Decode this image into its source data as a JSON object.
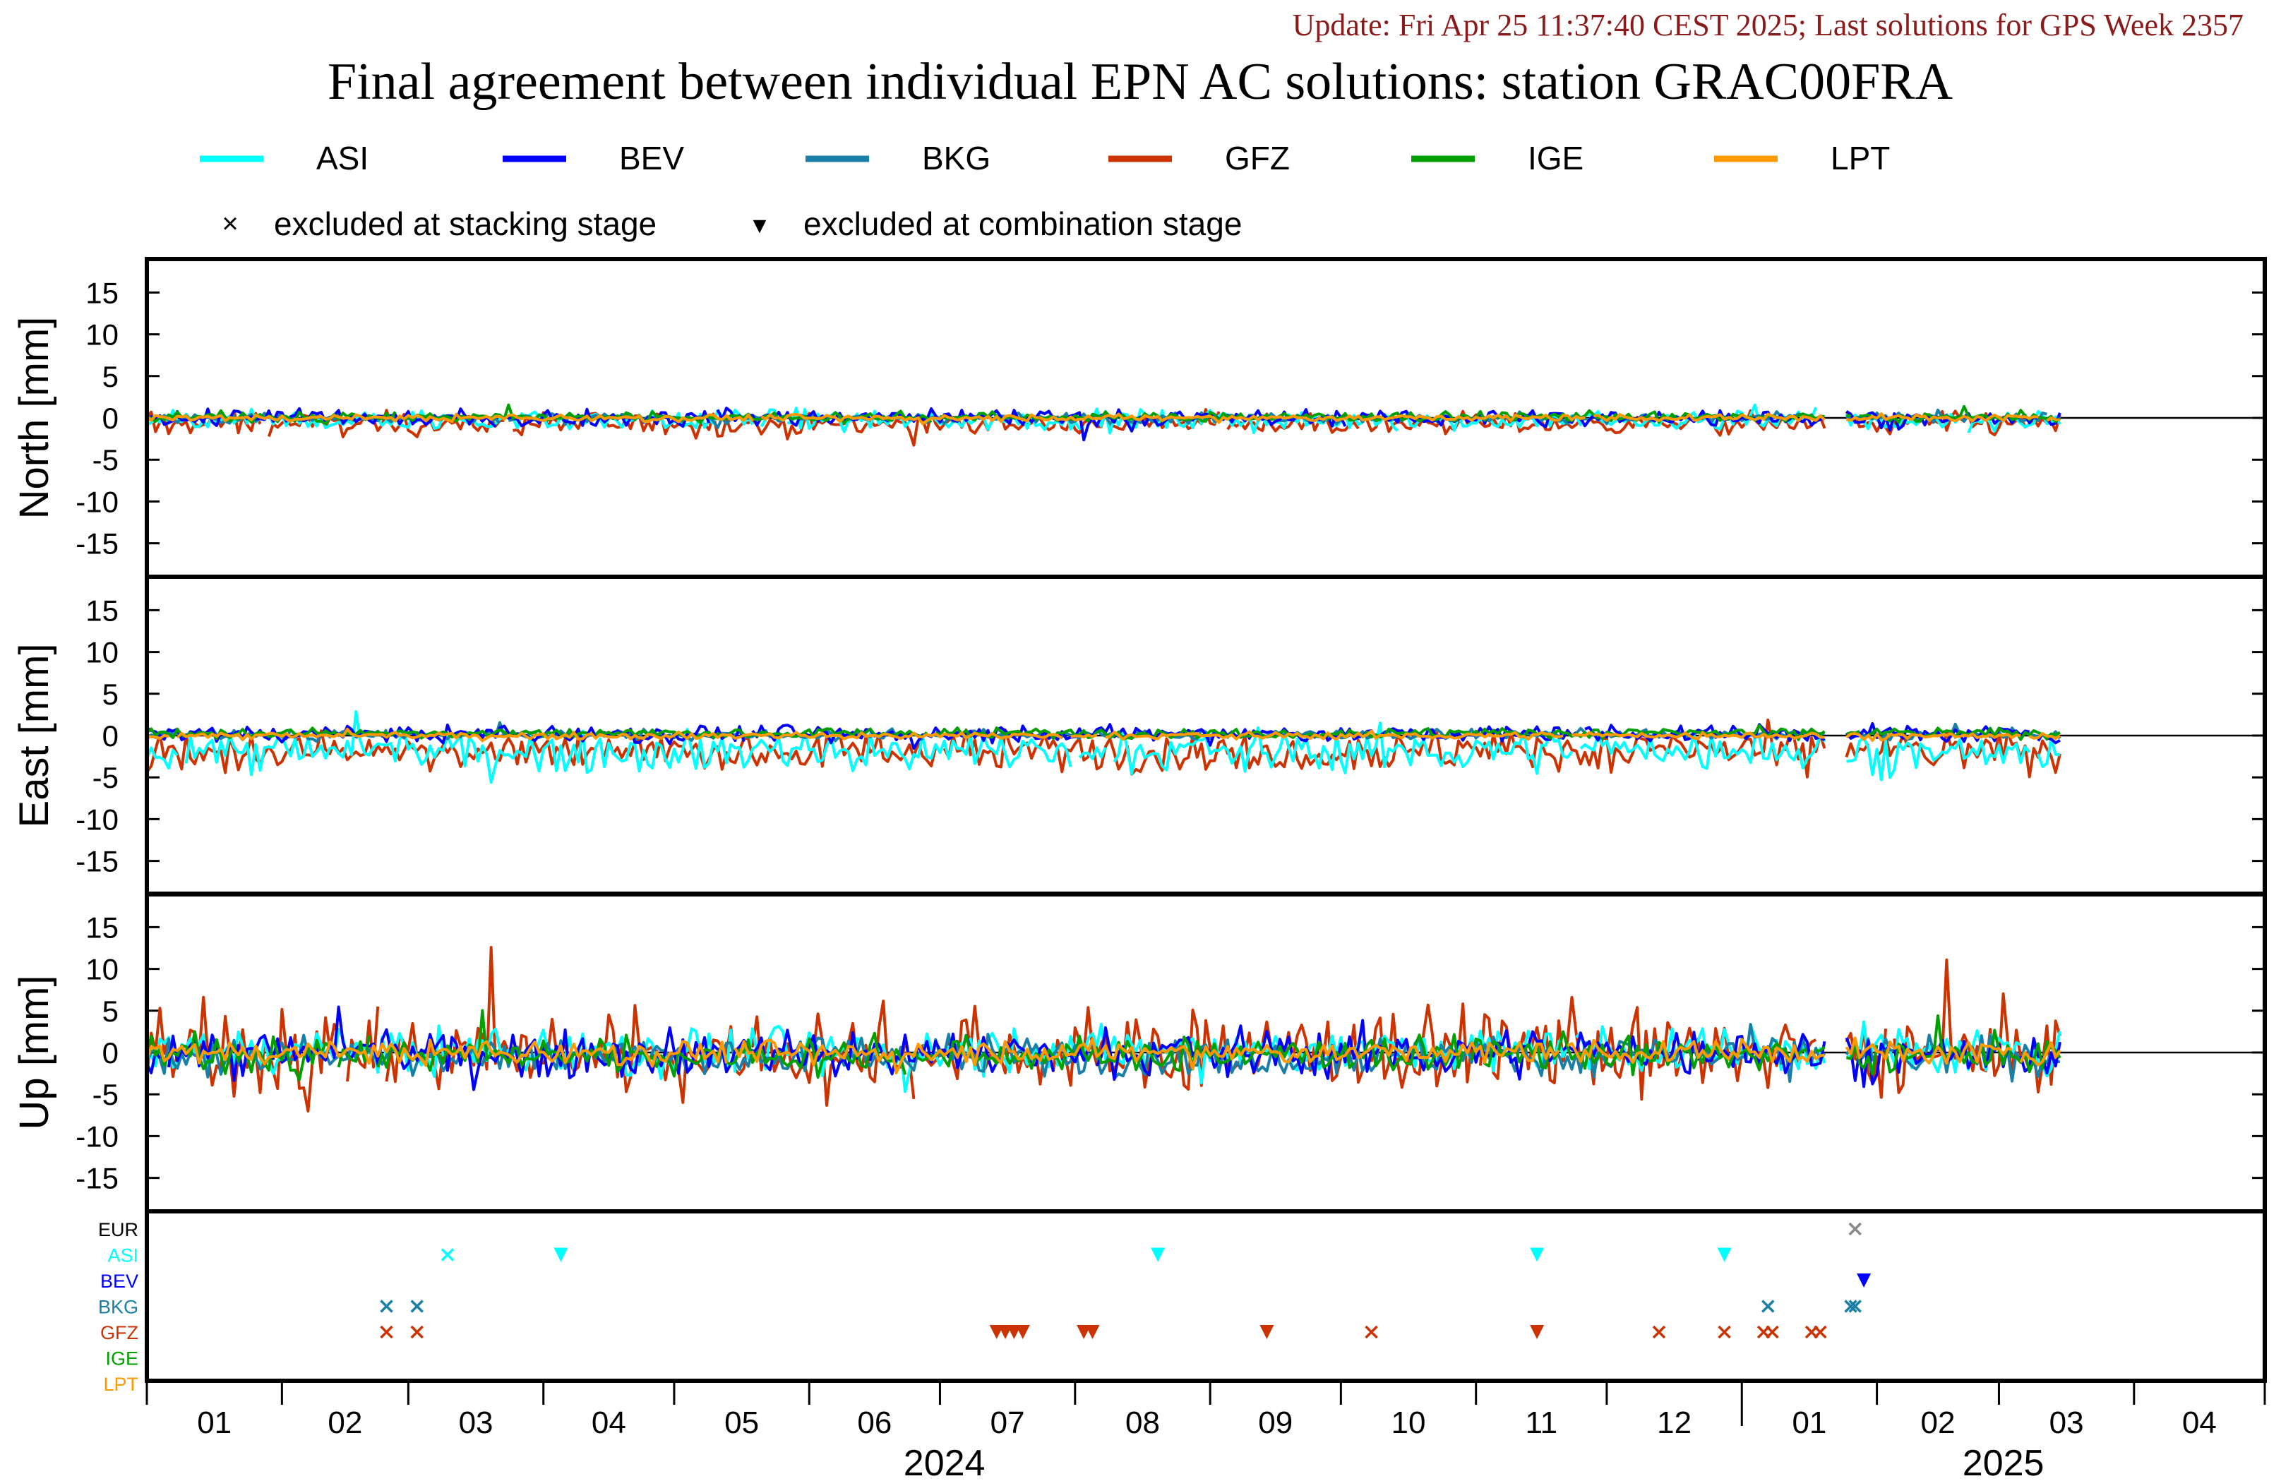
{
  "header": {
    "update_text": "Update: Fri Apr 25 11:37:40 CEST 2025; Last solutions for GPS Week 2357",
    "title": "Final agreement between individual EPN AC solutions: station GRAC00FRA"
  },
  "legend": {
    "series": [
      {
        "name": "ASI",
        "color": "#00ffff"
      },
      {
        "name": "BEV",
        "color": "#0000ff"
      },
      {
        "name": "BKG",
        "color": "#1a7fa6"
      },
      {
        "name": "GFZ",
        "color": "#cc3300"
      },
      {
        "name": "IGE",
        "color": "#00a000"
      },
      {
        "name": "LPT",
        "color": "#ff9900"
      }
    ],
    "markers": [
      {
        "symbol": "×",
        "label": "excluded at stacking stage"
      },
      {
        "symbol": "▼",
        "label": "excluded at combination stage"
      }
    ]
  },
  "chart_data": {
    "type": "line",
    "panels": [
      {
        "ylabel": "North [mm]",
        "ylim": [
          -19,
          19
        ],
        "yticks": [
          15,
          10,
          5,
          0,
          -5,
          -10,
          -15
        ]
      },
      {
        "ylabel": "East [mm]",
        "ylim": [
          -19,
          19
        ],
        "yticks": [
          15,
          10,
          5,
          0,
          -5,
          -10,
          -15
        ]
      },
      {
        "ylabel": "Up [mm]",
        "ylim": [
          -19,
          19
        ],
        "yticks": [
          15,
          10,
          5,
          0,
          -5,
          -10,
          -15
        ]
      }
    ],
    "x_range": [
      "2024-01-01",
      "2025-04-30"
    ],
    "x_month_ticks": [
      "01",
      "02",
      "03",
      "04",
      "05",
      "06",
      "07",
      "08",
      "09",
      "10",
      "11",
      "12",
      "01",
      "02",
      "03",
      "04"
    ],
    "x_year_labels": [
      "2024",
      "2025"
    ],
    "series_noise_mm": {
      "North": {
        "ASI": 0.6,
        "BEV": 0.5,
        "BKG": 0.3,
        "GFZ": 0.7,
        "IGE": 0.3,
        "LPT": 0.2
      },
      "East": {
        "ASI": 1.2,
        "BEV": 0.5,
        "BKG": 0.3,
        "GFZ": 1.2,
        "IGE": 0.3,
        "LPT": 0.2
      },
      "Up": {
        "ASI": 1.4,
        "BEV": 1.4,
        "BKG": 1.2,
        "GFZ": 2.6,
        "IGE": 1.1,
        "LPT": 0.7
      }
    },
    "series_bias_mm": {
      "North": {
        "ASI": -0.3,
        "BEV": 0.0,
        "BKG": 0.0,
        "GFZ": -0.7,
        "IGE": 0.1,
        "LPT": 0.0
      },
      "East": {
        "ASI": -1.8,
        "BEV": 0.2,
        "BKG": 0.1,
        "GFZ": -1.8,
        "IGE": 0.3,
        "LPT": 0.0
      },
      "Up": {
        "ASI": 0.2,
        "BEV": 0.0,
        "BKG": -0.3,
        "GFZ": 0.0,
        "IGE": -0.3,
        "LPT": 0.0
      }
    },
    "data_gaps": [
      [
        "2025-01-21",
        "2025-01-24"
      ]
    ],
    "data_end": "2025-03-15",
    "exclusion_rows": [
      {
        "name": "EUR",
        "color": "#000000"
      },
      {
        "name": "ASI",
        "color": "#00ffff"
      },
      {
        "name": "BEV",
        "color": "#0000ff"
      },
      {
        "name": "BKG",
        "color": "#1a7fa6"
      },
      {
        "name": "GFZ",
        "color": "#cc3300"
      },
      {
        "name": "IGE",
        "color": "#00a000"
      },
      {
        "name": "LPT",
        "color": "#ff9900"
      }
    ],
    "exclusions": [
      {
        "row": "EUR",
        "date": "2025-01-27",
        "type": "stacking"
      },
      {
        "row": "ASI",
        "date": "2024-03-10",
        "type": "stacking"
      },
      {
        "row": "ASI",
        "date": "2024-04-05",
        "type": "combination"
      },
      {
        "row": "ASI",
        "date": "2024-08-20",
        "type": "combination"
      },
      {
        "row": "ASI",
        "date": "2024-11-15",
        "type": "combination"
      },
      {
        "row": "ASI",
        "date": "2024-12-28",
        "type": "combination"
      },
      {
        "row": "BEV",
        "date": "2025-01-29",
        "type": "combination"
      },
      {
        "row": "BKG",
        "date": "2024-02-25",
        "type": "stacking"
      },
      {
        "row": "BKG",
        "date": "2024-03-03",
        "type": "stacking"
      },
      {
        "row": "BKG",
        "date": "2025-01-07",
        "type": "stacking"
      },
      {
        "row": "BKG",
        "date": "2025-01-26",
        "type": "stacking"
      },
      {
        "row": "BKG",
        "date": "2025-01-27",
        "type": "stacking"
      },
      {
        "row": "GFZ",
        "date": "2024-02-25",
        "type": "stacking"
      },
      {
        "row": "GFZ",
        "date": "2024-03-03",
        "type": "stacking"
      },
      {
        "row": "GFZ",
        "date": "2024-07-14",
        "type": "combination"
      },
      {
        "row": "GFZ",
        "date": "2024-07-16",
        "type": "combination"
      },
      {
        "row": "GFZ",
        "date": "2024-07-18",
        "type": "combination"
      },
      {
        "row": "GFZ",
        "date": "2024-07-20",
        "type": "combination"
      },
      {
        "row": "GFZ",
        "date": "2024-08-03",
        "type": "combination"
      },
      {
        "row": "GFZ",
        "date": "2024-08-05",
        "type": "combination"
      },
      {
        "row": "GFZ",
        "date": "2024-09-14",
        "type": "combination"
      },
      {
        "row": "GFZ",
        "date": "2024-10-08",
        "type": "stacking"
      },
      {
        "row": "GFZ",
        "date": "2024-11-15",
        "type": "combination"
      },
      {
        "row": "GFZ",
        "date": "2024-12-13",
        "type": "stacking"
      },
      {
        "row": "GFZ",
        "date": "2024-12-28",
        "type": "stacking"
      },
      {
        "row": "GFZ",
        "date": "2025-01-06",
        "type": "stacking"
      },
      {
        "row": "GFZ",
        "date": "2025-01-08",
        "type": "stacking"
      },
      {
        "row": "GFZ",
        "date": "2025-01-17",
        "type": "stacking"
      },
      {
        "row": "GFZ",
        "date": "2025-01-19",
        "type": "stacking"
      }
    ]
  }
}
